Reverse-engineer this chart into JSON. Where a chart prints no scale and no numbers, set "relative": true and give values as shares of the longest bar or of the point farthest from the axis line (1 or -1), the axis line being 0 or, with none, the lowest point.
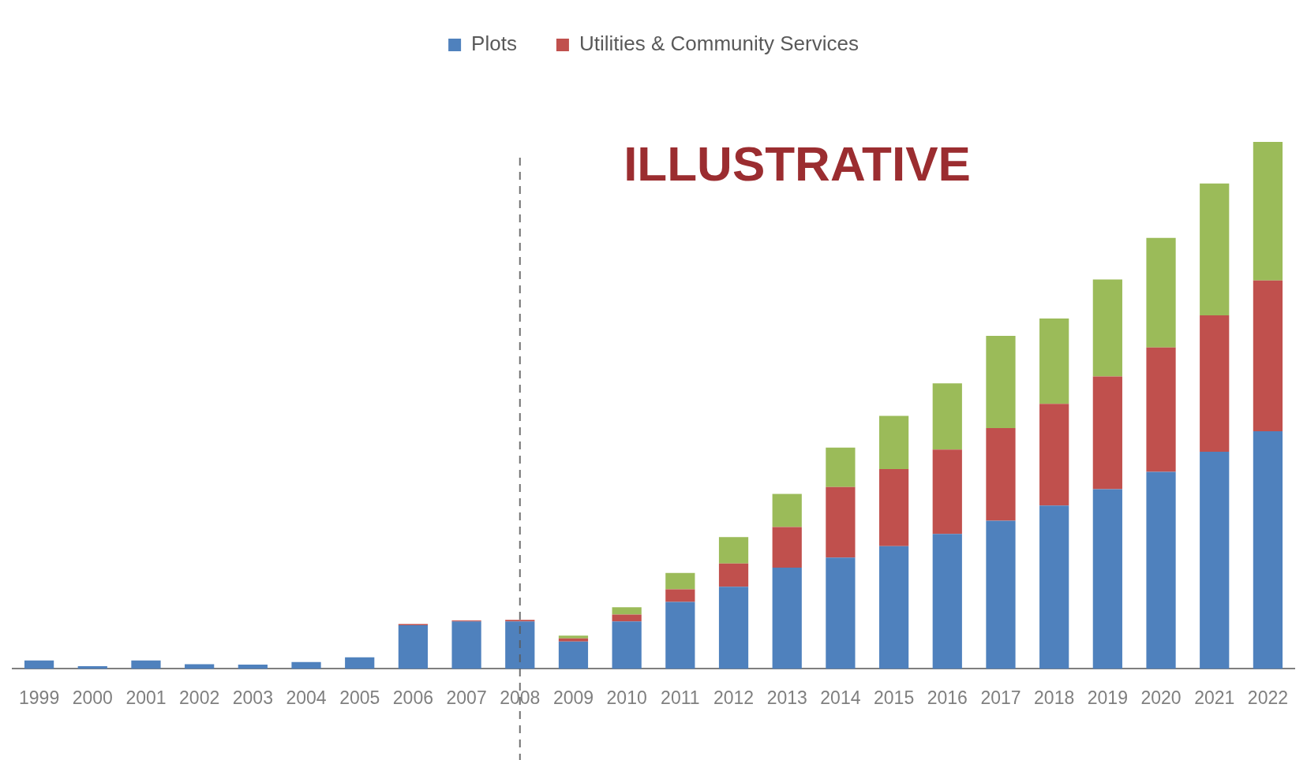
{
  "chart_data": {
    "type": "bar",
    "stacked": true,
    "relative": true,
    "legend": "top",
    "grid": false,
    "categories": [
      "1999",
      "2000",
      "2001",
      "2002",
      "2003",
      "2004",
      "2005",
      "2006",
      "2007",
      "2008",
      "2009",
      "2010",
      "2011",
      "2012",
      "2013",
      "2014",
      "2015",
      "2016",
      "2017",
      "2018",
      "2019",
      "2020",
      "2021",
      "2022"
    ],
    "series": [
      {
        "name": "Plots",
        "color": "#4f81bd",
        "values": [
          0.016,
          0.005,
          0.016,
          0.009,
          0.008,
          0.013,
          0.022,
          0.083,
          0.09,
          0.09,
          0.052,
          0.09,
          0.127,
          0.156,
          0.192,
          0.211,
          0.233,
          0.256,
          0.281,
          0.31,
          0.341,
          0.374,
          0.412,
          0.451
        ]
      },
      {
        "name": "Utilities & Community Services",
        "color": "#c0504d",
        "values": [
          null,
          null,
          null,
          null,
          null,
          null,
          null,
          0.002,
          0.002,
          0.003,
          0.006,
          0.013,
          0.024,
          0.044,
          0.077,
          0.134,
          0.146,
          0.16,
          0.176,
          0.193,
          0.214,
          0.236,
          0.259,
          0.286
        ]
      },
      {
        "color": "#9bbb59",
        "values": [
          null,
          null,
          null,
          null,
          null,
          null,
          null,
          null,
          null,
          null,
          0.005,
          0.014,
          0.031,
          0.05,
          0.063,
          0.075,
          0.101,
          0.126,
          0.175,
          0.162,
          0.184,
          0.208,
          0.25,
          0.263
        ]
      }
    ],
    "ref_lines": [
      {
        "axis": "x",
        "value": "2008",
        "line_style": "dashed",
        "color": "#595959"
      }
    ],
    "annotations": [
      "ILLUSTRATIVE"
    ]
  }
}
